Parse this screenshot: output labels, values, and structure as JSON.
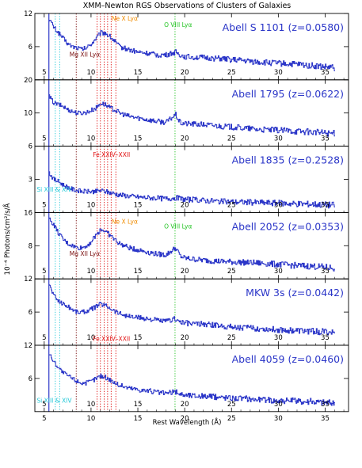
{
  "figure": {
    "title": "XMM–Newton RGS Observations of Clusters of Galaxies",
    "xlabel": "Rest Wavelength (Å)",
    "ylabel": "10⁻⁴ Photons/cm²/s/Å"
  },
  "colors": {
    "spectrum": "#2b36c8",
    "axis": "#000000",
    "ne_x": "#f08c00",
    "o_viii": "#22c322",
    "fe_l": "#e01010",
    "mg_xii": "#7a1010",
    "si": "#22c8d8",
    "label": "#2b36c8"
  },
  "chart_data": {
    "type": "line",
    "xlim": [
      4,
      37.5
    ],
    "xticks": [
      5,
      10,
      15,
      20,
      25,
      30,
      35
    ],
    "line_markers": {
      "si_xiv": 6.18,
      "si_xiii": 6.65,
      "mg_xii": 8.42,
      "fe_l": [
        10.65,
        11.0,
        11.4,
        11.77,
        12.15,
        12.65
      ],
      "o_viii": 18.97
    },
    "panels": [
      {
        "label": "Abell S 1101 (z=0.0580)",
        "ylim": [
          0,
          12
        ],
        "yticks": [
          6,
          12
        ],
        "annotations": [
          {
            "text": "Ne X Lyα",
            "color": "#f08c00",
            "x": 12.2,
            "y": 10.7
          },
          {
            "text": "O VIII Lyα",
            "color": "#22c322",
            "x": 17.8,
            "y": 9.6
          },
          {
            "text": "Mg XII Lyα",
            "color": "#7a1010",
            "x": 7.7,
            "y": 4.2
          }
        ],
        "spectrum": [
          [
            5.5,
            11
          ],
          [
            6,
            9.5
          ],
          [
            6.5,
            8.5
          ],
          [
            7,
            7.5
          ],
          [
            7.5,
            6.5
          ],
          [
            8,
            6
          ],
          [
            8.5,
            5.8
          ],
          [
            9,
            5.5
          ],
          [
            9.5,
            5.8
          ],
          [
            10,
            6.5
          ],
          [
            10.5,
            7.5
          ],
          [
            11,
            8.5
          ],
          [
            11.5,
            8.5
          ],
          [
            12,
            7.8
          ],
          [
            12.5,
            7
          ],
          [
            13,
            6
          ],
          [
            14,
            5.5
          ],
          [
            15,
            5
          ],
          [
            16,
            4.8
          ],
          [
            17,
            4.5
          ],
          [
            18,
            4.5
          ],
          [
            19,
            5
          ],
          [
            19.5,
            4.5
          ],
          [
            20,
            4.2
          ],
          [
            22,
            4
          ],
          [
            24,
            3.8
          ],
          [
            26,
            3.5
          ],
          [
            28,
            3.2
          ],
          [
            30,
            3
          ],
          [
            32,
            2.8
          ],
          [
            34,
            2.5
          ],
          [
            35,
            2.3
          ],
          [
            36,
            2.2
          ]
        ]
      },
      {
        "label": "Abell 1795 (z=0.0622)",
        "ylim": [
          0,
          20
        ],
        "yticks": [
          10,
          20
        ],
        "annotations": [
          {
            "text": "Fe XXIV–XXII",
            "color": "#e01010",
            "x": 10.2,
            "y": -3.2
          }
        ],
        "spectrum": [
          [
            5.5,
            15
          ],
          [
            6,
            13
          ],
          [
            6.5,
            12.5
          ],
          [
            7,
            12
          ],
          [
            7.5,
            11
          ],
          [
            8,
            10.5
          ],
          [
            8.5,
            10
          ],
          [
            9,
            10
          ],
          [
            9.5,
            10.2
          ],
          [
            10,
            10.8
          ],
          [
            10.5,
            11.5
          ],
          [
            11,
            13
          ],
          [
            11.5,
            12.5
          ],
          [
            12,
            11.5
          ],
          [
            12.5,
            11
          ],
          [
            13,
            10
          ],
          [
            14,
            9
          ],
          [
            15,
            8.5
          ],
          [
            16,
            8
          ],
          [
            17,
            7.5
          ],
          [
            18,
            7.2
          ],
          [
            19,
            9.5
          ],
          [
            19.5,
            7
          ],
          [
            20,
            6.8
          ],
          [
            22,
            6.5
          ],
          [
            24,
            6
          ],
          [
            26,
            5.5
          ],
          [
            28,
            5
          ],
          [
            30,
            4.8
          ],
          [
            32,
            4.5
          ],
          [
            34,
            4.2
          ],
          [
            35,
            4
          ],
          [
            36,
            3.8
          ]
        ]
      },
      {
        "label": "Abell 1835 (z=0.2528)",
        "ylim": [
          0,
          6
        ],
        "yticks": [
          3,
          6
        ],
        "annotations": [
          {
            "text": "Si XIII & XIV",
            "color": "#22c8d8",
            "x": 4.2,
            "y": 1.9
          }
        ],
        "spectrum": [
          [
            5.5,
            3.6
          ],
          [
            6,
            3
          ],
          [
            6.5,
            2.8
          ],
          [
            7,
            2.5
          ],
          [
            7.5,
            2.3
          ],
          [
            8,
            2.1
          ],
          [
            8.5,
            2
          ],
          [
            9,
            1.9
          ],
          [
            9.5,
            1.9
          ],
          [
            10,
            1.9
          ],
          [
            10.5,
            1.9
          ],
          [
            11,
            2
          ],
          [
            11.5,
            1.9
          ],
          [
            12,
            1.8
          ],
          [
            12.5,
            1.7
          ],
          [
            13,
            1.6
          ],
          [
            14,
            1.5
          ],
          [
            15,
            1.4
          ],
          [
            16,
            1.35
          ],
          [
            17,
            1.3
          ],
          [
            18,
            1.25
          ],
          [
            19,
            1.35
          ],
          [
            19.5,
            1.25
          ],
          [
            20,
            1.2
          ],
          [
            22,
            1.1
          ],
          [
            24,
            1
          ],
          [
            26,
            0.95
          ],
          [
            28,
            0.9
          ],
          [
            30,
            0.85
          ],
          [
            32,
            0.8
          ],
          [
            34,
            0.75
          ],
          [
            35,
            0.7
          ],
          [
            36,
            0.68
          ]
        ]
      },
      {
        "label": "Abell 2052 (z=0.0353)",
        "ylim": [
          0,
          16
        ],
        "yticks": [
          8,
          16
        ],
        "annotations": [
          {
            "text": "Ne X Lyα",
            "color": "#f08c00",
            "x": 12.2,
            "y": 13.3
          },
          {
            "text": "O VIII Lyα",
            "color": "#22c322",
            "x": 17.8,
            "y": 12.2
          },
          {
            "text": "Mg XII Lyα",
            "color": "#7a1010",
            "x": 7.7,
            "y": 5.6
          }
        ],
        "spectrum": [
          [
            5.5,
            14.5
          ],
          [
            6,
            13
          ],
          [
            6.5,
            11
          ],
          [
            7,
            9.5
          ],
          [
            7.5,
            8.5
          ],
          [
            8,
            8
          ],
          [
            8.5,
            7.5
          ],
          [
            9,
            7.5
          ],
          [
            9.5,
            8
          ],
          [
            10,
            9
          ],
          [
            10.5,
            10.5
          ],
          [
            11,
            12
          ],
          [
            11.5,
            11.5
          ],
          [
            12,
            10.5
          ],
          [
            12.5,
            9.5
          ],
          [
            13,
            8.5
          ],
          [
            14,
            7.5
          ],
          [
            15,
            7
          ],
          [
            16,
            6.5
          ],
          [
            17,
            6
          ],
          [
            18,
            5.8
          ],
          [
            19,
            7.5
          ],
          [
            19.5,
            5.5
          ],
          [
            20,
            5
          ],
          [
            22,
            4.5
          ],
          [
            24,
            4.2
          ],
          [
            26,
            4
          ],
          [
            28,
            3.8
          ],
          [
            30,
            3.5
          ],
          [
            32,
            3.2
          ],
          [
            34,
            3
          ],
          [
            35,
            2.8
          ],
          [
            36,
            2.6
          ]
        ]
      },
      {
        "label": "MKW 3s (z=0.0442)",
        "ylim": [
          0,
          12
        ],
        "yticks": [
          6,
          12
        ],
        "annotations": [
          {
            "text": "Fe XXIV–XXII",
            "color": "#e01010",
            "x": 10.2,
            "y": 0.8
          }
        ],
        "spectrum": [
          [
            5.5,
            11
          ],
          [
            6,
            9
          ],
          [
            6.5,
            8
          ],
          [
            7,
            7.5
          ],
          [
            7.5,
            7
          ],
          [
            8,
            6.5
          ],
          [
            8.5,
            6
          ],
          [
            9,
            6
          ],
          [
            9.5,
            6.2
          ],
          [
            10,
            6.5
          ],
          [
            10.5,
            7
          ],
          [
            11,
            7.5
          ],
          [
            11.5,
            7.2
          ],
          [
            12,
            6.8
          ],
          [
            12.5,
            6.2
          ],
          [
            13,
            5.8
          ],
          [
            14,
            5.2
          ],
          [
            15,
            5
          ],
          [
            16,
            4.8
          ],
          [
            17,
            4.5
          ],
          [
            18,
            4.3
          ],
          [
            19,
            4.8
          ],
          [
            19.5,
            4.2
          ],
          [
            20,
            4
          ],
          [
            22,
            3.8
          ],
          [
            24,
            3.5
          ],
          [
            26,
            3.2
          ],
          [
            28,
            3
          ],
          [
            30,
            2.8
          ],
          [
            32,
            2.6
          ],
          [
            34,
            2.5
          ],
          [
            35,
            2.4
          ],
          [
            36,
            2.3
          ]
        ]
      },
      {
        "label": "Abell 4059 (z=0.0460)",
        "ylim": [
          0,
          12
        ],
        "yticks": [
          6,
          12
        ],
        "annotations": [
          {
            "text": "Si XIII & XIV",
            "color": "#22c8d8",
            "x": 4.2,
            "y": 1.6
          }
        ],
        "spectrum": [
          [
            5.5,
            10.5
          ],
          [
            6,
            9
          ],
          [
            6.5,
            8
          ],
          [
            7,
            7
          ],
          [
            7.5,
            6.5
          ],
          [
            8,
            6
          ],
          [
            8.5,
            5.5
          ],
          [
            9,
            5.2
          ],
          [
            9.5,
            5.2
          ],
          [
            10,
            5.5
          ],
          [
            10.5,
            6
          ],
          [
            11,
            6.5
          ],
          [
            11.5,
            6.2
          ],
          [
            12,
            5.8
          ],
          [
            12.5,
            5.2
          ],
          [
            13,
            4.8
          ],
          [
            14,
            4.3
          ],
          [
            15,
            4
          ],
          [
            16,
            3.8
          ],
          [
            17,
            3.5
          ],
          [
            18,
            3.3
          ],
          [
            19,
            3.6
          ],
          [
            19.5,
            3.2
          ],
          [
            20,
            3
          ],
          [
            22,
            2.8
          ],
          [
            24,
            2.6
          ],
          [
            26,
            2.4
          ],
          [
            28,
            2.2
          ],
          [
            30,
            2
          ],
          [
            32,
            1.9
          ],
          [
            34,
            1.8
          ],
          [
            35,
            1.7
          ],
          [
            36,
            1.6
          ]
        ]
      }
    ]
  }
}
